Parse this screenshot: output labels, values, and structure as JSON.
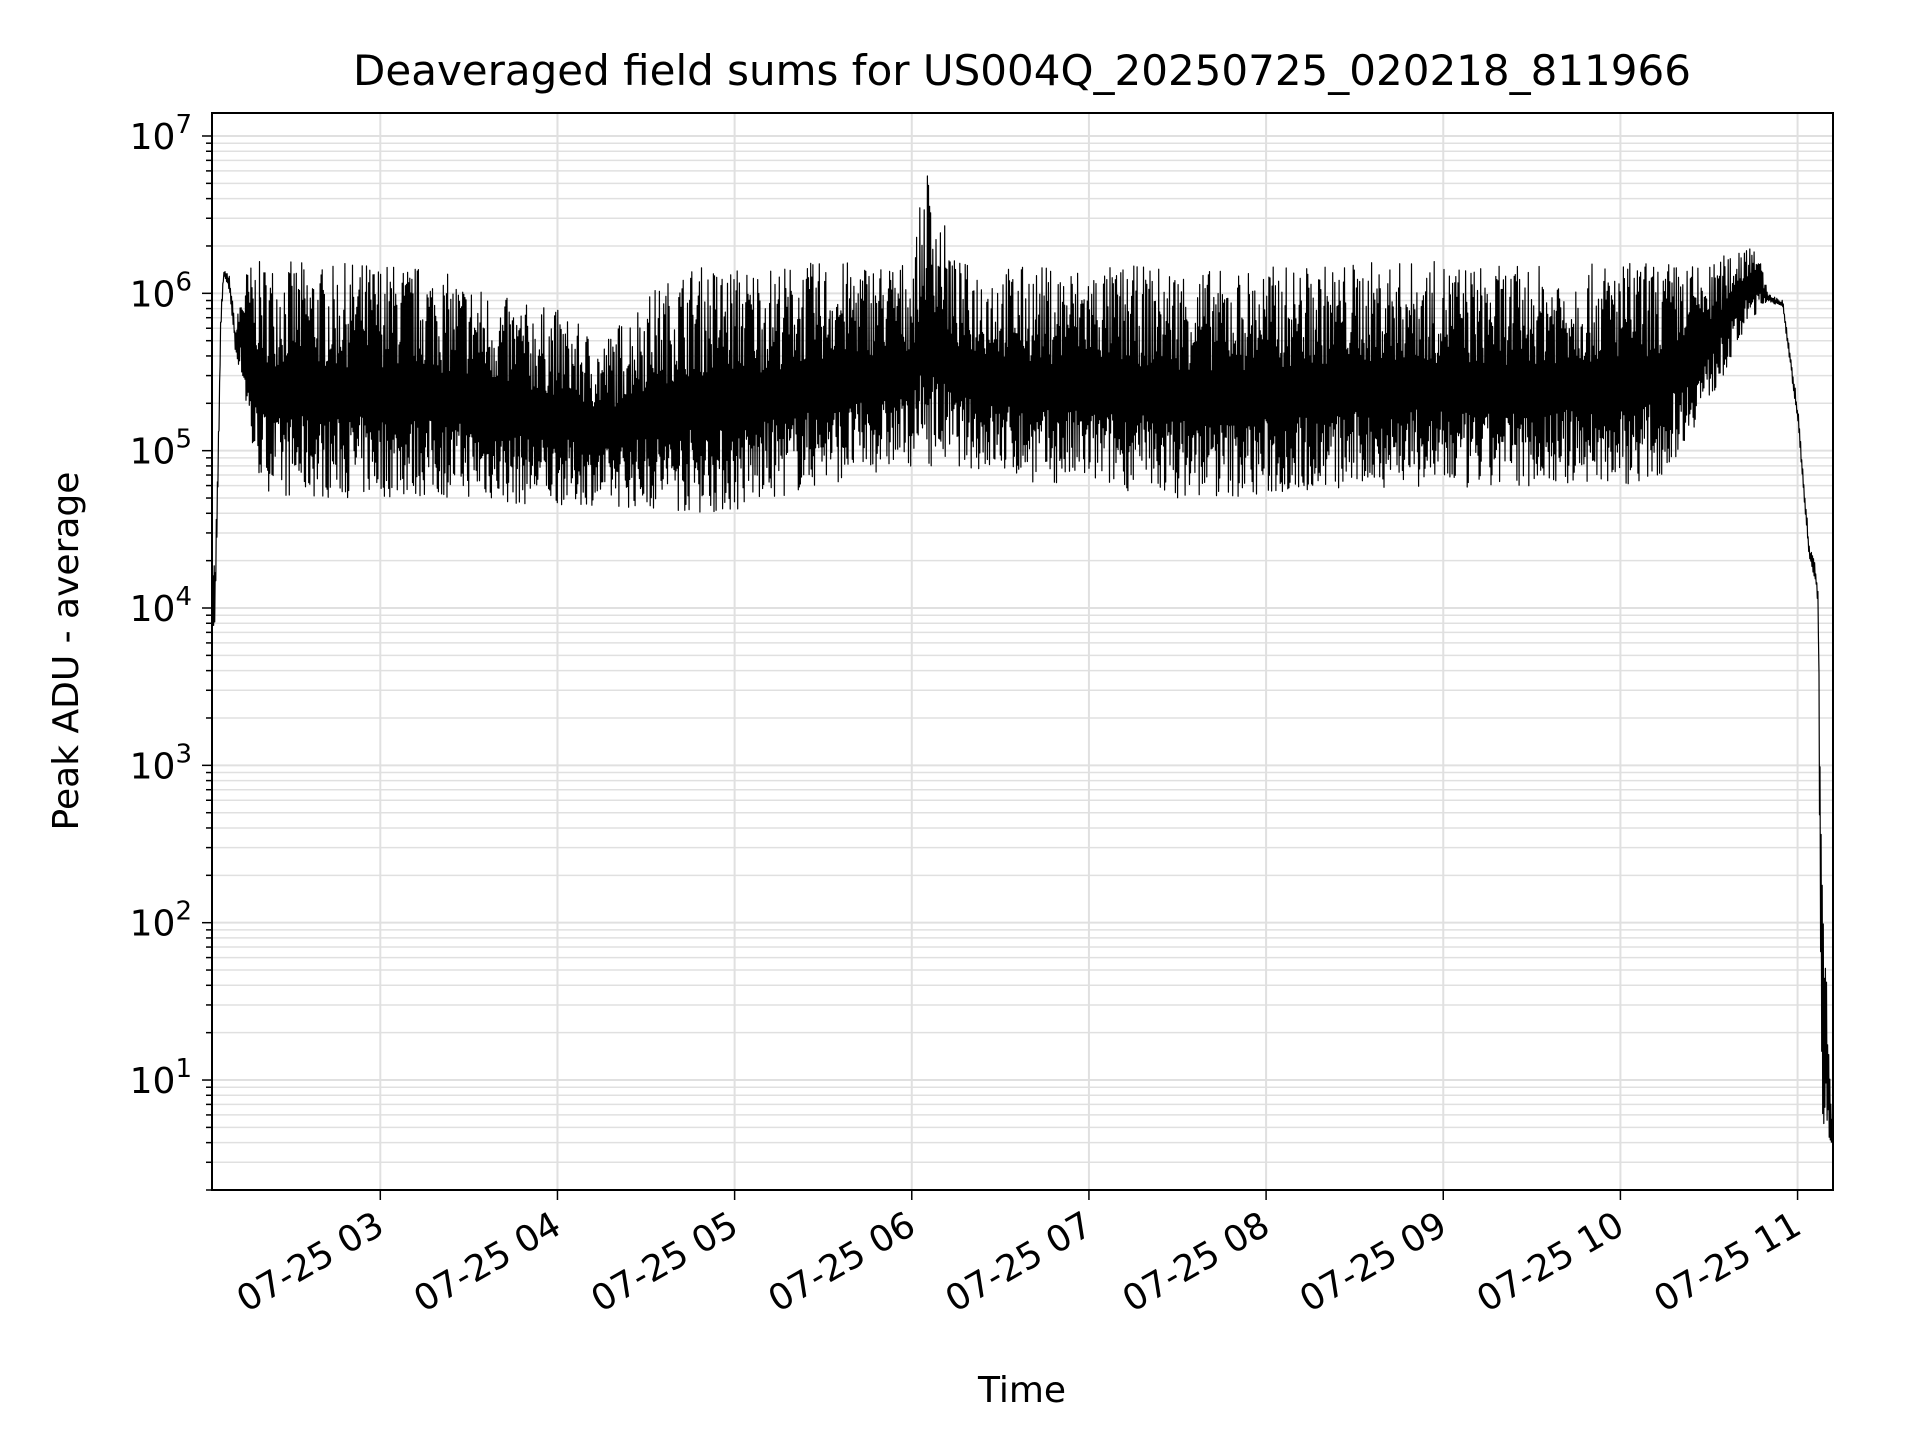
{
  "chart_data": {
    "type": "line",
    "title": "Deaveraged field sums for US004Q_20250725_020218_811966",
    "xlabel": "Time",
    "ylabel": "Peak ADU - average",
    "yscale": "log",
    "ylim": [
      2,
      14000000
    ],
    "xlim": [
      "2025-07-25 02:03",
      "2025-07-25 11:12"
    ],
    "grid": true,
    "line_color": "#000000",
    "grid_color": "#e0e0e0",
    "x_ticks": [
      "2025-07-25 03:00",
      "2025-07-25 04:00",
      "2025-07-25 05:00",
      "2025-07-25 06:00",
      "2025-07-25 07:00",
      "2025-07-25 08:00",
      "2025-07-25 09:00",
      "2025-07-25 10:00",
      "2025-07-25 11:00"
    ],
    "x_tick_labels": [
      "07-25 03",
      "07-25 04",
      "07-25 05",
      "07-25 06",
      "07-25 07",
      "07-25 08",
      "07-25 09",
      "07-25 10",
      "07-25 11"
    ],
    "y_tick_values": [
      10,
      100,
      1000,
      10000,
      100000,
      1000000,
      10000000
    ],
    "y_tick_labels": [
      {
        "base": "10",
        "exp": "1"
      },
      {
        "base": "10",
        "exp": "2"
      },
      {
        "base": "10",
        "exp": "3"
      },
      {
        "base": "10",
        "exp": "4"
      },
      {
        "base": "10",
        "exp": "5"
      },
      {
        "base": "10",
        "exp": "6"
      },
      {
        "base": "10",
        "exp": "7"
      }
    ],
    "series": [
      {
        "x": [
          "2025-07-25 02:03",
          "2025-07-25 02:04",
          "2025-07-25 02:05",
          "2025-07-25 02:06",
          "2025-07-25 02:07",
          "2025-07-25 02:09",
          "2025-07-25 02:11",
          "2025-07-25 02:13",
          "2025-07-25 02:15",
          "2025-07-25 02:17",
          "2025-07-25 02:20",
          "2025-07-25 02:25",
          "2025-07-25 02:30",
          "2025-07-25 02:35",
          "2025-07-25 02:40",
          "2025-07-25 02:45",
          "2025-07-25 02:50",
          "2025-07-25 03:00",
          "2025-07-25 03:15",
          "2025-07-25 03:30",
          "2025-07-25 03:45",
          "2025-07-25 04:00",
          "2025-07-25 04:15",
          "2025-07-25 04:30",
          "2025-07-25 04:45",
          "2025-07-25 05:00",
          "2025-07-25 05:15",
          "2025-07-25 05:30",
          "2025-07-25 05:45",
          "2025-07-25 06:00",
          "2025-07-25 06:05",
          "2025-07-25 06:15",
          "2025-07-25 06:30",
          "2025-07-25 06:45",
          "2025-07-25 07:00",
          "2025-07-25 07:15",
          "2025-07-25 07:30",
          "2025-07-25 07:45",
          "2025-07-25 08:00",
          "2025-07-25 08:15",
          "2025-07-25 08:30",
          "2025-07-25 08:45",
          "2025-07-25 09:00",
          "2025-07-25 09:15",
          "2025-07-25 09:30",
          "2025-07-25 09:45",
          "2025-07-25 10:00",
          "2025-07-25 10:15",
          "2025-07-25 10:30",
          "2025-07-25 10:45",
          "2025-07-25 10:50",
          "2025-07-25 10:55",
          "2025-07-25 11:00",
          "2025-07-25 11:04",
          "2025-07-25 11:06",
          "2025-07-25 11:07",
          "2025-07-25 11:08",
          "2025-07-25 11:12"
        ],
        "y_high": [
          25000,
          20000,
          90000,
          800000,
          1400000,
          1300000,
          600000,
          1100000,
          1500000,
          1600000,
          1600000,
          1600000,
          1600000,
          1600000,
          1500000,
          1500000,
          1600000,
          1600000,
          1500000,
          1200000,
          900000,
          800000,
          500000,
          1000000,
          1500000,
          1500000,
          1500000,
          1600000,
          1600000,
          1600000,
          6700000,
          1600000,
          1500000,
          1500000,
          1500000,
          1500000,
          1500000,
          1400000,
          1500000,
          1500000,
          1600000,
          1600000,
          1600000,
          1500000,
          1500000,
          1500000,
          1600000,
          1600000,
          1500000,
          2400000,
          1000000,
          900000,
          200000,
          25000,
          20000,
          12000,
          400,
          4
        ],
        "y_low": [
          8000,
          6500,
          50000,
          600000,
          1300000,
          1000000,
          400000,
          300000,
          150000,
          80000,
          60000,
          50000,
          50000,
          50000,
          50000,
          50000,
          50000,
          50000,
          50000,
          50000,
          45000,
          45000,
          45000,
          42000,
          40000,
          40000,
          50000,
          60000,
          70000,
          80000,
          80000,
          80000,
          70000,
          60000,
          60000,
          55000,
          50000,
          50000,
          50000,
          55000,
          55000,
          60000,
          55000,
          55000,
          60000,
          60000,
          60000,
          70000,
          200000,
          700000,
          900000,
          800000,
          150000,
          20000,
          15000,
          10000,
          4,
          4
        ]
      }
    ]
  }
}
